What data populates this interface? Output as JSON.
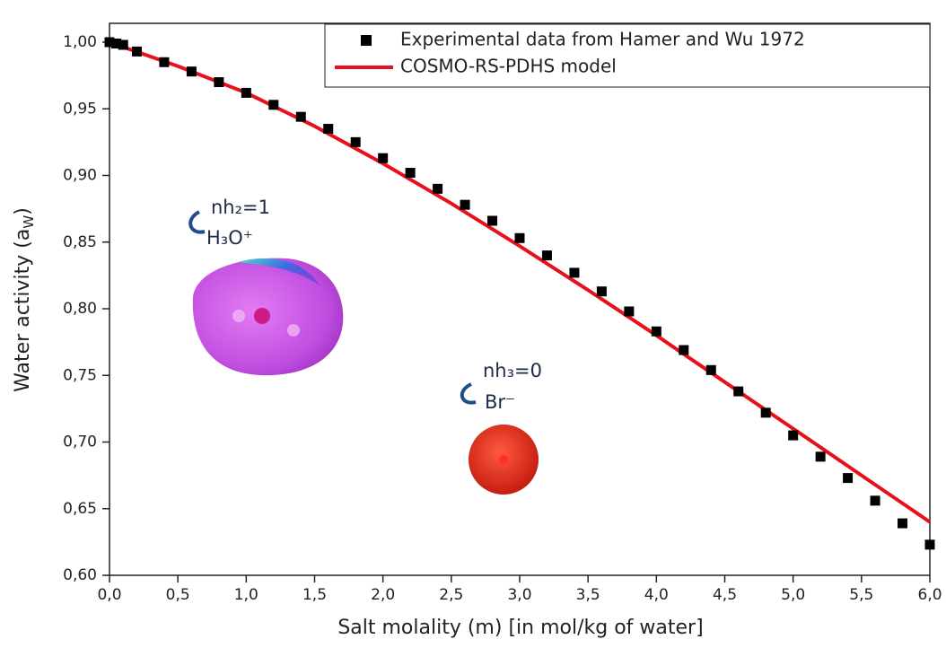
{
  "chart_data": {
    "type": "scatter",
    "xlabel": "Salt molality (m) [in mol/kg of water]",
    "ylabel": [
      "Water activity (a",
      "W",
      ")"
    ],
    "xlim": [
      0,
      6
    ],
    "ylim": [
      0.6,
      1.0
    ],
    "xticks": [
      {
        "value": 0,
        "label": "0,0"
      },
      {
        "value": 0.5,
        "label": "0,5"
      },
      {
        "value": 1,
        "label": "1,0"
      },
      {
        "value": 1.5,
        "label": "1,5"
      },
      {
        "value": 2,
        "label": "2,0"
      },
      {
        "value": 2.5,
        "label": "2,5"
      },
      {
        "value": 3,
        "label": "3,0"
      },
      {
        "value": 3.5,
        "label": "3,5"
      },
      {
        "value": 4,
        "label": "4,0"
      },
      {
        "value": 4.5,
        "label": "4,5"
      },
      {
        "value": 5,
        "label": "5,0"
      },
      {
        "value": 5.5,
        "label": "5,5"
      },
      {
        "value": 6,
        "label": "6,0"
      }
    ],
    "yticks": [
      {
        "value": 0.6,
        "label": "0,60"
      },
      {
        "value": 0.65,
        "label": "0,65"
      },
      {
        "value": 0.7,
        "label": "0,70"
      },
      {
        "value": 0.75,
        "label": "0,75"
      },
      {
        "value": 0.8,
        "label": "0,80"
      },
      {
        "value": 0.85,
        "label": "0,85"
      },
      {
        "value": 0.9,
        "label": "0,90"
      },
      {
        "value": 0.95,
        "label": "0,95"
      },
      {
        "value": 1.0,
        "label": "1,00"
      }
    ],
    "legend": "upper right",
    "series": [
      {
        "name": "Experimental data from Hamer and Wu 1972",
        "type": "scatter",
        "color": "#000000",
        "x": [
          0,
          0.05,
          0.1,
          0.2,
          0.4,
          0.6,
          0.8,
          1.0,
          1.2,
          1.4,
          1.6,
          1.8,
          2.0,
          2.2,
          2.4,
          2.6,
          2.8,
          3.0,
          3.2,
          3.4,
          3.6,
          3.8,
          4.0,
          4.2,
          4.4,
          4.6,
          4.8,
          5.0,
          5.2,
          5.4,
          5.6,
          5.8,
          6.0
        ],
        "values": [
          1.0,
          0.999,
          0.998,
          0.993,
          0.985,
          0.978,
          0.97,
          0.962,
          0.953,
          0.944,
          0.935,
          0.925,
          0.913,
          0.902,
          0.89,
          0.878,
          0.866,
          0.853,
          0.84,
          0.827,
          0.813,
          0.798,
          0.783,
          0.769,
          0.754,
          0.738,
          0.722,
          0.705,
          0.689,
          0.673,
          0.656,
          0.639,
          0.623
        ]
      },
      {
        "name": "COSMO-RS-PDHS model",
        "type": "line",
        "color": "#e8101a",
        "x": [
          0,
          0.5,
          1.0,
          1.5,
          2.0,
          2.5,
          3.0,
          3.5,
          4.0,
          4.5,
          5.0,
          5.5,
          6.0
        ],
        "values": [
          1.0,
          0.982,
          0.962,
          0.937,
          0.909,
          0.879,
          0.847,
          0.814,
          0.78,
          0.745,
          0.71,
          0.675,
          0.64
        ]
      }
    ],
    "annotations": [
      "nh₂=1",
      "H₃O⁺",
      "nh₃=0",
      "Br⁻"
    ]
  }
}
